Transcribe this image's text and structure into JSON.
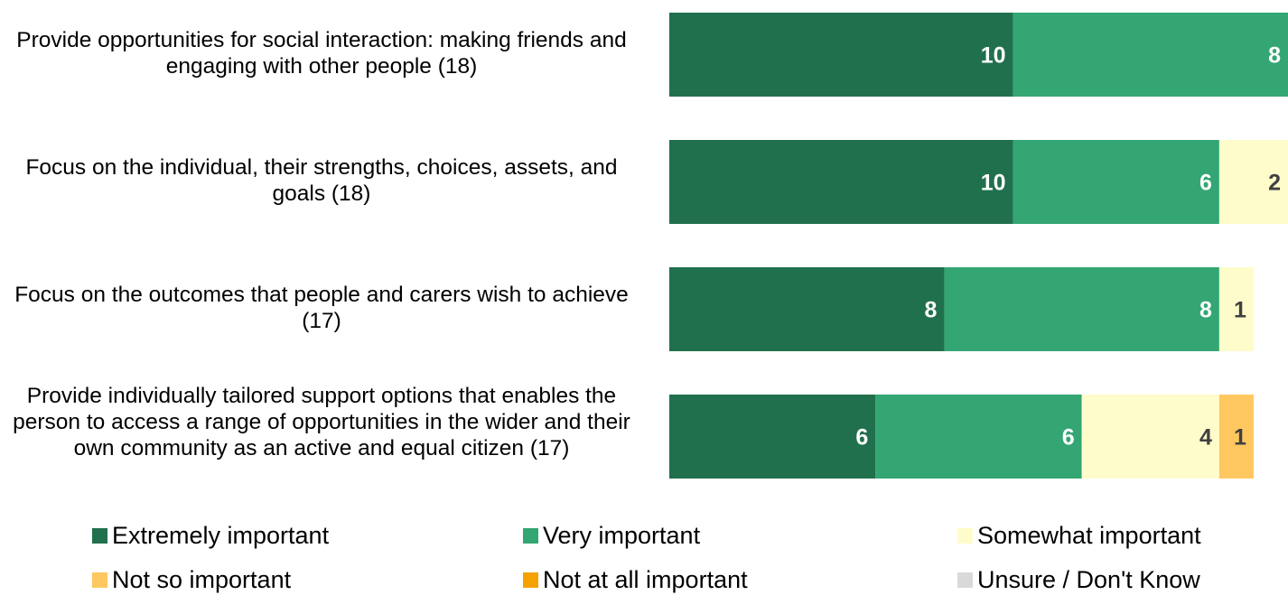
{
  "chart_data": {
    "type": "bar",
    "orientation": "horizontal",
    "stacked": true,
    "categories": [
      "Provide opportunities for social interaction: making friends and engaging with other people (18)",
      "Focus on the individual, their strengths, choices, assets, and goals (18)",
      "Focus on the outcomes that people and carers wish to achieve (17)",
      "Provide individually tailored support options that enables the person to access a range of opportunities in the wider and their own community as an active and equal citizen (17)"
    ],
    "series": [
      {
        "name": "Extremely important",
        "color": "#21704d",
        "label_color": "#ffffff",
        "values": [
          10,
          10,
          8,
          6
        ]
      },
      {
        "name": "Very important",
        "color": "#33a673",
        "label_color": "#ffffff",
        "values": [
          8,
          6,
          8,
          6
        ]
      },
      {
        "name": "Somewhat important",
        "color": "#fffccc",
        "label_color": "#404040",
        "values": [
          0,
          2,
          1,
          4
        ]
      },
      {
        "name": "Not so important",
        "color": "#ffc760",
        "label_color": "#404040",
        "values": [
          0,
          0,
          0,
          1
        ]
      },
      {
        "name": "Not at all important",
        "color": "#f5a200",
        "label_color": "#404040",
        "values": [
          0,
          0,
          0,
          0
        ]
      },
      {
        "name": "Unsure / Don't Know",
        "color": "#d9d9d9",
        "label_color": "#404040",
        "values": [
          0,
          0,
          0,
          0
        ]
      }
    ],
    "xlim": [
      0,
      18
    ],
    "grid": false,
    "legend_position": "bottom"
  }
}
